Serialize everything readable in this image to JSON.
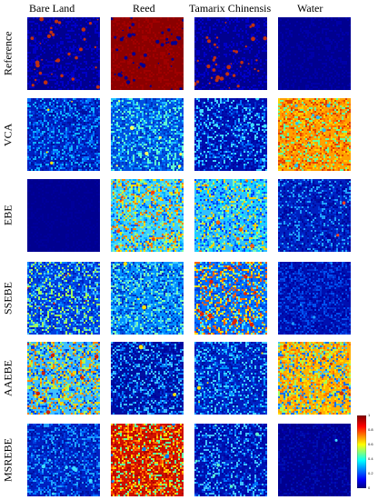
{
  "columns": [
    "Bare Land",
    "Reed",
    "Tamarix Chinensis",
    "Water"
  ],
  "rows": [
    {
      "label": "Reference",
      "maps": [
        {
          "base": "#00008f",
          "speckle": [
            "#00008f",
            "#0000c8"
          ],
          "blobs": "#c03010",
          "blob_density": 0.08
        },
        {
          "base": "#8b0000",
          "speckle": [
            "#8b0000",
            "#a00000"
          ],
          "blobs": "#000090",
          "blob_density": 0.12
        },
        {
          "base": "#00008f",
          "speckle": [
            "#00008f",
            "#0000c8"
          ],
          "blobs": "#c03010",
          "blob_density": 0.1
        },
        {
          "base": "#00008f",
          "speckle": [
            "#00008f",
            "#0000a8"
          ],
          "blobs": "#00008f",
          "blob_density": 0.0
        }
      ]
    },
    {
      "label": "VCA",
      "maps": [
        {
          "base": "#0020c0",
          "speckle": [
            "#0010a0",
            "#0040e0",
            "#0070ff",
            "#10b0ff"
          ],
          "blobs": "#ffe000",
          "blob_density": 0.01
        },
        {
          "base": "#0050e0",
          "speckle": [
            "#0030c0",
            "#0080ff",
            "#20c0ff",
            "#60ffd0"
          ],
          "blobs": "#ffff60",
          "blob_density": 0.02
        },
        {
          "base": "#0010b0",
          "speckle": [
            "#0000a0",
            "#0030d0",
            "#0070ff",
            "#40d0ff"
          ],
          "blobs": "#40e0ff",
          "blob_density": 0.03
        },
        {
          "base": "#ffa000",
          "speckle": [
            "#ffd000",
            "#ff7000",
            "#e04000",
            "#60ffa0"
          ],
          "blobs": "#20c0ff",
          "blob_density": 0.02
        }
      ]
    },
    {
      "label": "EBE",
      "maps": [
        {
          "base": "#00008f",
          "speckle": [
            "#00008f",
            "#00009a"
          ],
          "blobs": "#00008f",
          "blob_density": 0.0
        },
        {
          "base": "#40d0ff",
          "speckle": [
            "#0060ff",
            "#80ffa0",
            "#ffe000",
            "#ff8000",
            "#00b0ff"
          ],
          "blobs": "#ff4000",
          "blob_density": 0.03
        },
        {
          "base": "#30c0ff",
          "speckle": [
            "#0040ff",
            "#80ffb0",
            "#ffd000",
            "#0080ff",
            "#00e0ff"
          ],
          "blobs": "#ff6000",
          "blob_density": 0.02
        },
        {
          "base": "#0020c0",
          "speckle": [
            "#0010a0",
            "#0040e0",
            "#20a0ff",
            "#0000a0"
          ],
          "blobs": "#ff4020",
          "blob_density": 0.005
        }
      ]
    },
    {
      "label": "SSEBE",
      "maps": [
        {
          "base": "#0040e0",
          "speckle": [
            "#0020c0",
            "#0080ff",
            "#40c0ff",
            "#a0ff60"
          ],
          "blobs": "#ff3000",
          "blob_density": 0.015
        },
        {
          "base": "#0090ff",
          "speckle": [
            "#0050e0",
            "#40d0ff",
            "#80ffb0",
            "#0030c0"
          ],
          "blobs": "#ffe000",
          "blob_density": 0.01
        },
        {
          "base": "#0070ff",
          "speckle": [
            "#0040e0",
            "#40e0ff",
            "#ffe000",
            "#ff6000"
          ],
          "blobs": "#e02000",
          "blob_density": 0.05
        },
        {
          "base": "#0010b0",
          "speckle": [
            "#0000a0",
            "#0030d0",
            "#0050f0"
          ],
          "blobs": "#20a0ff",
          "blob_density": 0.01
        }
      ]
    },
    {
      "label": "AAEBE",
      "maps": [
        {
          "base": "#40c0ff",
          "speckle": [
            "#0080ff",
            "#a0ff60",
            "#ffd000",
            "#ff8000",
            "#0040e0"
          ],
          "blobs": "#d02000",
          "blob_density": 0.03
        },
        {
          "base": "#0010a0",
          "speckle": [
            "#0000a0",
            "#0030d0",
            "#0080ff",
            "#40c0ff"
          ],
          "blobs": "#ffe000",
          "blob_density": 0.005
        },
        {
          "base": "#0020c0",
          "speckle": [
            "#0010a0",
            "#0040e0",
            "#0090ff",
            "#40d0ff"
          ],
          "blobs": "#ffe000",
          "blob_density": 0.01
        },
        {
          "base": "#ffb000",
          "speckle": [
            "#ffe000",
            "#ff7000",
            "#40c0ff",
            "#0070ff",
            "#a0ff60"
          ],
          "blobs": "#d03000",
          "blob_density": 0.02
        }
      ]
    },
    {
      "label": "MSREBE",
      "maps": [
        {
          "base": "#0020c0",
          "speckle": [
            "#0010a0",
            "#0040e0",
            "#0070ff",
            "#20a0ff"
          ],
          "blobs": "#40e0ff",
          "blob_density": 0.02
        },
        {
          "base": "#d01000",
          "speckle": [
            "#b00000",
            "#ff4000",
            "#ff8000",
            "#ffd000",
            "#60ffa0"
          ],
          "blobs": "#0080ff",
          "blob_density": 0.02
        },
        {
          "base": "#0010b0",
          "speckle": [
            "#0000a0",
            "#0030d0",
            "#0070ff",
            "#40c0ff"
          ],
          "blobs": "#60ffd0",
          "blob_density": 0.02
        },
        {
          "base": "#00008f",
          "speckle": [
            "#00008f",
            "#0000a8",
            "#0010b0"
          ],
          "blobs": "#40e0ff",
          "blob_density": 0.003
        }
      ]
    }
  ],
  "colorbar": {
    "ticks": [
      "1",
      "0.8",
      "0.6",
      "0.4",
      "0.2",
      "0"
    ],
    "stops": [
      "#800000",
      "#ff0000",
      "#ffff00",
      "#00ffff",
      "#0000ff",
      "#000080"
    ]
  }
}
